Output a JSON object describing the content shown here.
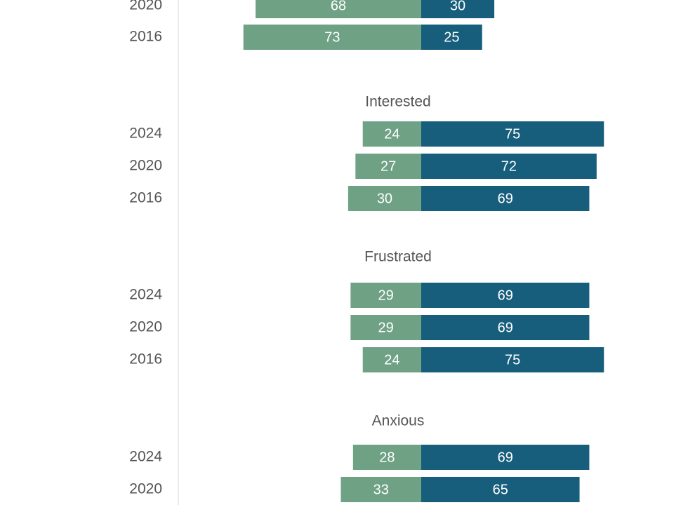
{
  "chart_data": {
    "type": "bar",
    "orientation": "horizontal-diverging",
    "colors": {
      "left": "#6fa185",
      "right": "#175e7d",
      "axis_line": "#e2e2e2",
      "text": "#555555"
    },
    "groups": [
      {
        "label": "",
        "rows": [
          {
            "year": "2020",
            "left": 68,
            "right": 30
          },
          {
            "year": "2016",
            "left": 73,
            "right": 25
          }
        ]
      },
      {
        "label": "Interested",
        "rows": [
          {
            "year": "2024",
            "left": 24,
            "right": 75
          },
          {
            "year": "2020",
            "left": 27,
            "right": 72
          },
          {
            "year": "2016",
            "left": 30,
            "right": 69
          }
        ]
      },
      {
        "label": "Frustrated",
        "rows": [
          {
            "year": "2024",
            "left": 29,
            "right": 69
          },
          {
            "year": "2020",
            "left": 29,
            "right": 69
          },
          {
            "year": "2016",
            "left": 24,
            "right": 75
          }
        ]
      },
      {
        "label": "Anxious",
        "rows": [
          {
            "year": "2024",
            "left": 28,
            "right": 69
          },
          {
            "year": "2020",
            "left": 33,
            "right": 65
          }
        ]
      }
    ]
  }
}
